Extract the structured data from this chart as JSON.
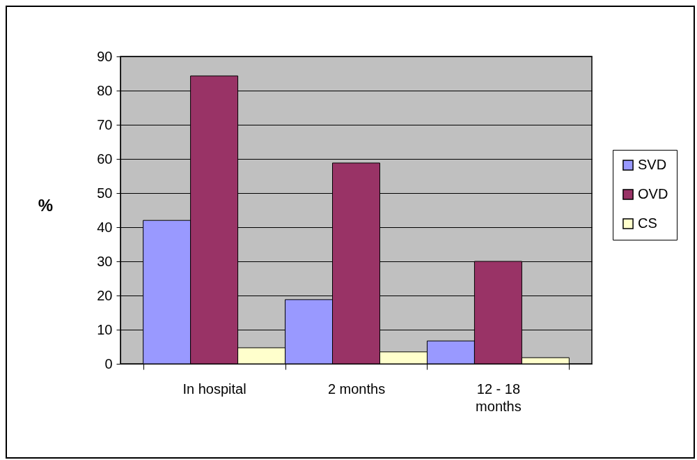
{
  "chart_data": {
    "type": "bar",
    "ylabel": "%",
    "categories": [
      "In hospital",
      "2 months",
      "12 - 18 months"
    ],
    "series": [
      {
        "name": "SVD",
        "color": "#9999ff",
        "values": [
          42,
          18.8,
          6.7
        ]
      },
      {
        "name": "OVD",
        "color": "#993366",
        "values": [
          84.3,
          58.8,
          30
        ]
      },
      {
        "name": "CS",
        "color": "#ffffcc",
        "values": [
          4.7,
          3.5,
          1.8
        ]
      }
    ],
    "ylim": [
      0,
      90
    ],
    "yticks": [
      0,
      10,
      20,
      30,
      40,
      50,
      60,
      70,
      80,
      90
    ],
    "grid": "y",
    "legend": "right"
  }
}
